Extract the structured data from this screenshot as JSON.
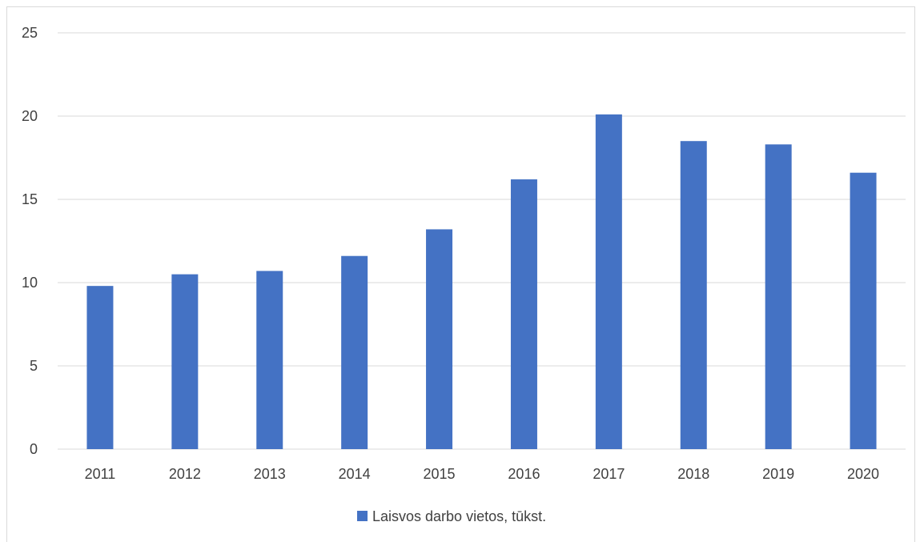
{
  "chart_data": {
    "type": "bar",
    "categories": [
      "2011",
      "2012",
      "2013",
      "2014",
      "2015",
      "2016",
      "2017",
      "2018",
      "2019",
      "2020"
    ],
    "series": [
      {
        "name": "Laisvos darbo vietos, tūkst.",
        "values": [
          9.8,
          10.5,
          10.7,
          11.6,
          13.2,
          16.2,
          20.1,
          18.5,
          18.3,
          16.6
        ],
        "color": "#4472c4"
      }
    ],
    "yticks": [
      "0",
      "5",
      "10",
      "15",
      "20",
      "25"
    ],
    "ylim": [
      0,
      25
    ],
    "grid": true,
    "legend_position": "bottom",
    "gridline_color": "#d9d9d9"
  }
}
